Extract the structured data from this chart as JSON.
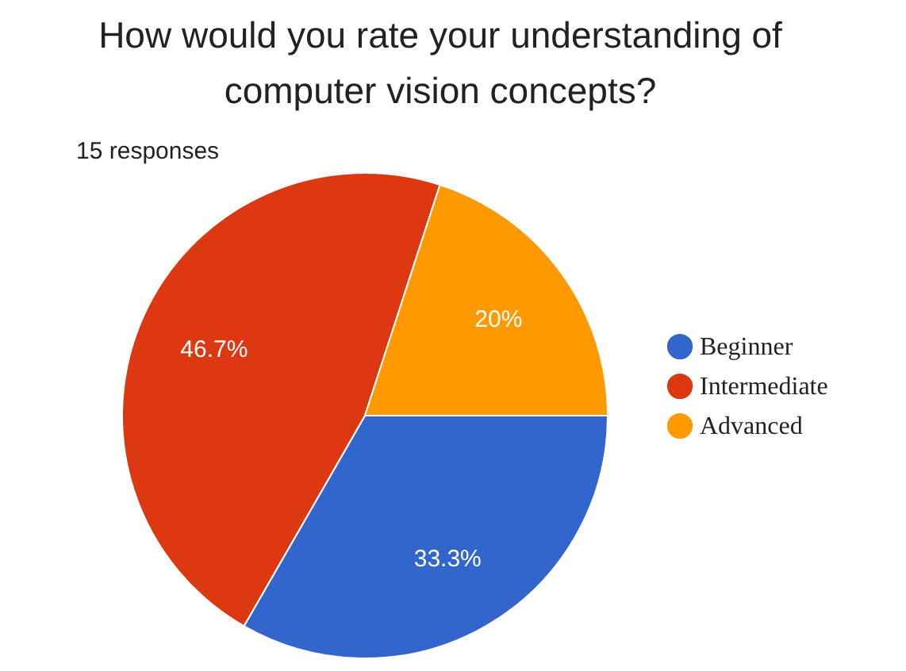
{
  "chart_data": {
    "type": "pie",
    "title": "How would you rate your understanding of\ncomputer vision concepts?",
    "subtitle": "15 responses",
    "categories": [
      "Beginner",
      "Intermediate",
      "Advanced"
    ],
    "values": [
      33.3,
      46.7,
      20
    ],
    "colors": [
      "#3366cc",
      "#dc3912",
      "#ff9900"
    ],
    "value_labels": [
      "33.3%",
      "46.7%",
      "20%"
    ],
    "legend": "right"
  }
}
